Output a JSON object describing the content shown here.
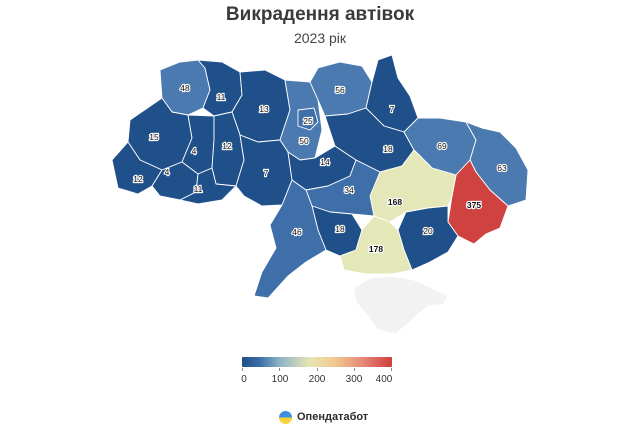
{
  "title": "Викрадення автівок",
  "subtitle": "2023 рік",
  "legend": {
    "ticks": [
      "0",
      "100",
      "200",
      "300",
      "400"
    ],
    "min": 0,
    "max": 400
  },
  "brand": {
    "name": "Опендатабот",
    "logo": "opendatabot-logo-icon"
  },
  "colors": {
    "low": "#1d4e89",
    "high": "#cf3f3c",
    "mid": "#e6e6b4",
    "nodata": "#f2f2f2"
  },
  "regions": [
    {
      "id": "volyn",
      "value": "48"
    },
    {
      "id": "rivne",
      "value": "11"
    },
    {
      "id": "zhytomyr",
      "value": "13"
    },
    {
      "id": "chernihiv",
      "value": "56"
    },
    {
      "id": "sumy",
      "value": "7"
    },
    {
      "id": "kyiv-city",
      "value": "25"
    },
    {
      "id": "kyiv-oblast",
      "value": "50"
    },
    {
      "id": "lviv",
      "value": "15"
    },
    {
      "id": "ternopil",
      "value": "4"
    },
    {
      "id": "khmelnytskyi",
      "value": "12"
    },
    {
      "id": "poltava",
      "value": "18"
    },
    {
      "id": "kharkiv",
      "value": "69"
    },
    {
      "id": "luhansk",
      "value": "63"
    },
    {
      "id": "cherkasy",
      "value": "14"
    },
    {
      "id": "vinnytsia",
      "value": "7"
    },
    {
      "id": "zakarpattia",
      "value": "12"
    },
    {
      "id": "ivano-frankivsk",
      "value": "4"
    },
    {
      "id": "chernivtsi",
      "value": "11"
    },
    {
      "id": "kirovohrad",
      "value": "34"
    },
    {
      "id": "dnipropetrovsk",
      "value": "168"
    },
    {
      "id": "donetsk",
      "value": "375"
    },
    {
      "id": "odesa",
      "value": "46"
    },
    {
      "id": "mykolaiv",
      "value": "18"
    },
    {
      "id": "zaporizhzhia",
      "value": "20"
    },
    {
      "id": "kherson",
      "value": "178"
    }
  ]
}
